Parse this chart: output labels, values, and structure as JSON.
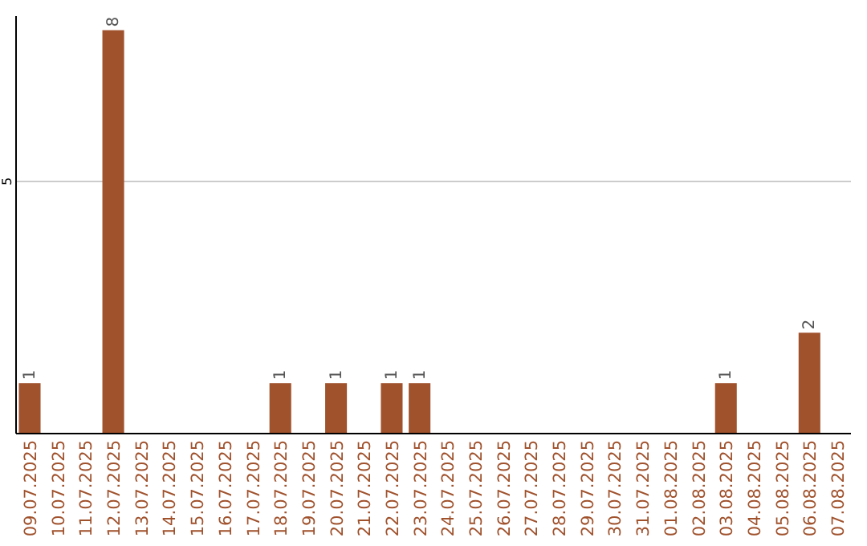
{
  "chart_data": {
    "type": "bar",
    "categories": [
      "09.07.2025",
      "10.07.2025",
      "11.07.2025",
      "12.07.2025",
      "13.07.2025",
      "14.07.2025",
      "15.07.2025",
      "16.07.2025",
      "17.07.2025",
      "18.07.2025",
      "19.07.2025",
      "20.07.2025",
      "21.07.2025",
      "22.07.2025",
      "23.07.2025",
      "24.07.2025",
      "25.07.2025",
      "26.07.2025",
      "27.07.2025",
      "28.07.2025",
      "29.07.2025",
      "30.07.2025",
      "31.07.2025",
      "01.08.2025",
      "02.08.2025",
      "03.08.2025",
      "04.08.2025",
      "05.08.2025",
      "06.08.2025",
      "07.08.2025"
    ],
    "values": [
      1,
      0,
      0,
      8,
      0,
      0,
      0,
      0,
      0,
      1,
      0,
      1,
      0,
      1,
      1,
      0,
      0,
      0,
      0,
      0,
      0,
      0,
      0,
      0,
      0,
      1,
      0,
      0,
      2,
      0
    ],
    "value_labels": [
      "1",
      null,
      null,
      "8",
      null,
      null,
      null,
      null,
      null,
      "1",
      null,
      "1",
      null,
      "1",
      "1",
      null,
      null,
      null,
      null,
      null,
      null,
      null,
      null,
      null,
      null,
      "1",
      null,
      null,
      "2",
      null
    ],
    "color": "#a0522d",
    "ylim": [
      0,
      8.28
    ],
    "yticks": [
      5
    ],
    "grid": "y"
  }
}
